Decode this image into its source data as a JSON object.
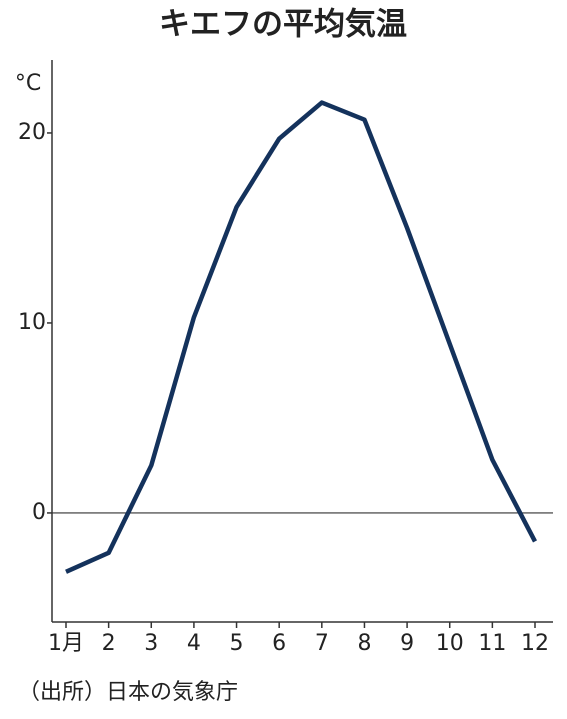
{
  "chart_data": {
    "type": "line",
    "title": "キエフの平均気温",
    "y_unit": "°C",
    "source": "（出所）日本の気象庁",
    "categories": [
      "1月",
      "2",
      "3",
      "4",
      "5",
      "6",
      "7",
      "8",
      "9",
      "10",
      "11",
      "12"
    ],
    "values": [
      -3.1,
      -2.1,
      2.5,
      10.3,
      16.1,
      19.7,
      21.6,
      20.7,
      15.0,
      8.9,
      2.8,
      -1.5
    ],
    "color": "#14325c",
    "ylim": [
      -5.74,
      23.84
    ],
    "yticks": [
      0,
      10,
      20
    ]
  }
}
